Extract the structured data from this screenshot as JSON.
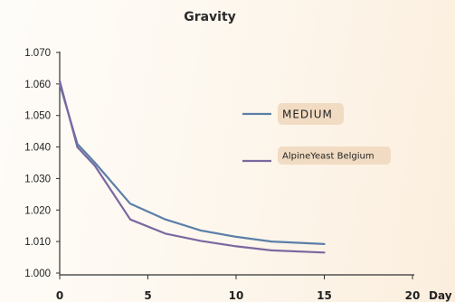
{
  "chart_data": {
    "type": "line",
    "title": "Gravity",
    "xlabel": "Day",
    "ylabel": "",
    "xlim": [
      0,
      20
    ],
    "ylim": [
      1.0,
      1.07
    ],
    "x_ticks": [
      "0",
      "5",
      "10",
      "15",
      "20"
    ],
    "y_ticks": [
      "1.000",
      "1.010",
      "1.020",
      "1.030",
      "1.040",
      "1.050",
      "1.060",
      "1.070"
    ],
    "grid": false,
    "legend_placement": "right",
    "series": [
      {
        "name": "MEDIUM",
        "color": "#5a7fa8",
        "x": [
          0,
          1,
          2,
          4,
          6,
          8,
          10,
          12,
          15
        ],
        "y": [
          1.06,
          1.041,
          1.035,
          1.022,
          1.017,
          1.0135,
          1.0115,
          1.01,
          1.0092
        ]
      },
      {
        "name": "AlpineYeast Belgium",
        "color": "#7a68a0",
        "x": [
          0,
          1,
          2,
          4,
          6,
          8,
          10,
          12,
          15
        ],
        "y": [
          1.061,
          1.04,
          1.034,
          1.017,
          1.0125,
          1.0102,
          1.0085,
          1.0072,
          1.0065
        ]
      }
    ]
  }
}
